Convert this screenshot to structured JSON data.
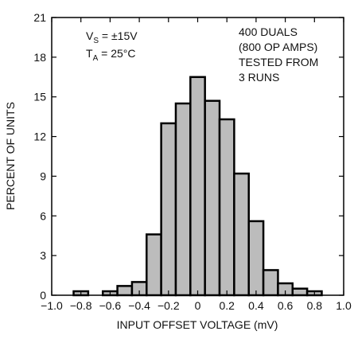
{
  "chart_data": {
    "type": "histogram",
    "xlabel": "INPUT OFFSET VOLTAGE (mV)",
    "ylabel": "PERCENT OF UNITS",
    "bins": [
      -0.85,
      -0.75,
      -0.65,
      -0.55,
      -0.45,
      -0.35,
      -0.25,
      -0.15,
      -0.05,
      0.05,
      0.15,
      0.25,
      0.35,
      0.45,
      0.55,
      0.65,
      0.75,
      0.85
    ],
    "values": [
      0.3,
      0,
      0.3,
      0.7,
      1.0,
      4.6,
      13.0,
      14.5,
      16.5,
      14.7,
      13.3,
      9.2,
      5.6,
      1.9,
      0.9,
      0.5,
      0.3
    ],
    "color": "#bcbcbc",
    "xlim": [
      -1.0,
      1.0
    ],
    "xticks": [
      {
        "value": -1.0,
        "label": "−1.0"
      },
      {
        "value": -0.8,
        "label": "−0.8"
      },
      {
        "value": -0.6,
        "label": "−0.6"
      },
      {
        "value": -0.4,
        "label": "−0.4"
      },
      {
        "value": -0.2,
        "label": "−0.2"
      },
      0,
      0.2,
      0.4,
      0.6,
      0.8,
      {
        "value": 1.0,
        "label": "1.0"
      }
    ],
    "ylim": [
      0,
      21
    ],
    "yticks": [
      0,
      3,
      6,
      9,
      12,
      15,
      18,
      21
    ],
    "annotations": {
      "left": [
        [
          "V",
          "S",
          " = ±15V"
        ],
        [
          "T",
          "A",
          " = 25°C"
        ]
      ],
      "right": [
        "400 DUALS",
        "(800 OP AMPS)",
        "TESTED FROM",
        "3 RUNS"
      ]
    }
  }
}
